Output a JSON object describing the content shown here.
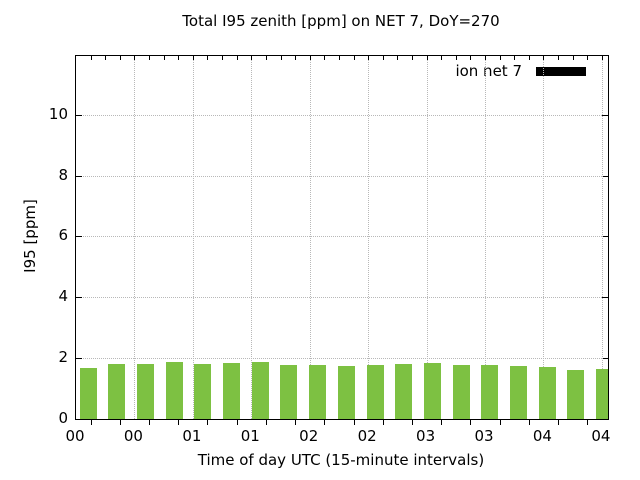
{
  "chart_data": {
    "type": "bar",
    "title": "Total I95 zenith [ppm] on NET 7, DoY=270",
    "xlabel": "Time of day UTC (15-minute intervals)",
    "ylabel": "I95 [ppm]",
    "x": [
      "00:00",
      "00:15",
      "00:30",
      "00:45",
      "01:00",
      "01:15",
      "01:30",
      "01:45",
      "02:00",
      "02:15",
      "02:30",
      "02:45",
      "03:00",
      "03:15",
      "03:30",
      "03:45",
      "04:00",
      "04:15",
      "04:30"
    ],
    "series": [
      {
        "name": "ion net 7",
        "values": [
          1.68,
          1.82,
          1.81,
          1.89,
          1.82,
          1.84,
          1.86,
          1.77,
          1.76,
          1.73,
          1.78,
          1.82,
          1.83,
          1.79,
          1.79,
          1.74,
          1.7,
          1.62,
          1.65
        ]
      }
    ],
    "x_tick_labels": [
      "00",
      "00",
      "01",
      "01",
      "02",
      "02",
      "03",
      "03",
      "04",
      "04"
    ],
    "y_ticks": [
      0,
      2,
      4,
      6,
      8,
      10
    ],
    "ylim": [
      0,
      11.93
    ],
    "grid": true,
    "grid_color": "#b8b8b8",
    "bar_color": "#7dc142",
    "frame_color": "#000000",
    "legend_position": "top-right-inside",
    "legend_swatch_color": "#000000"
  }
}
